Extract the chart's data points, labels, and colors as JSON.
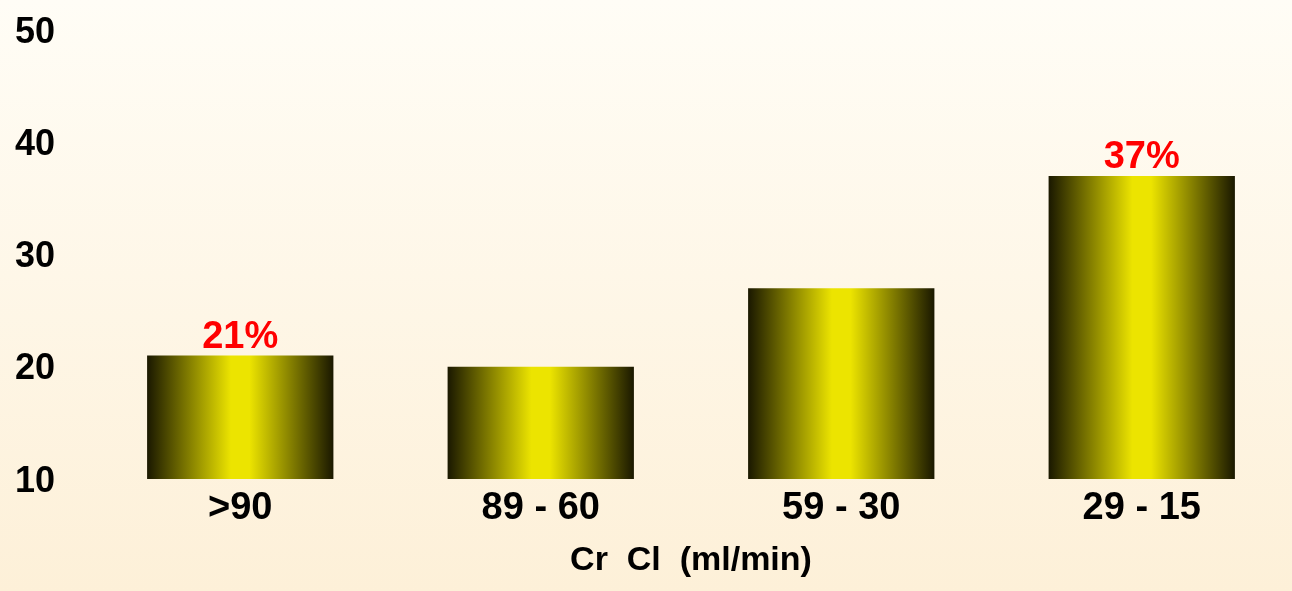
{
  "chart_data": {
    "type": "bar",
    "xlabel": "Cr  Cl  (ml/min)",
    "categories": [
      ">90",
      "89 - 60",
      "59 - 30",
      "29 - 15"
    ],
    "values": [
      21,
      20,
      27,
      37
    ],
    "value_labels": [
      "21%",
      null,
      null,
      "37%"
    ],
    "color": "#ece400",
    "ylim": [
      10,
      50
    ],
    "yticks": [
      10,
      20,
      30,
      40,
      50
    ]
  }
}
